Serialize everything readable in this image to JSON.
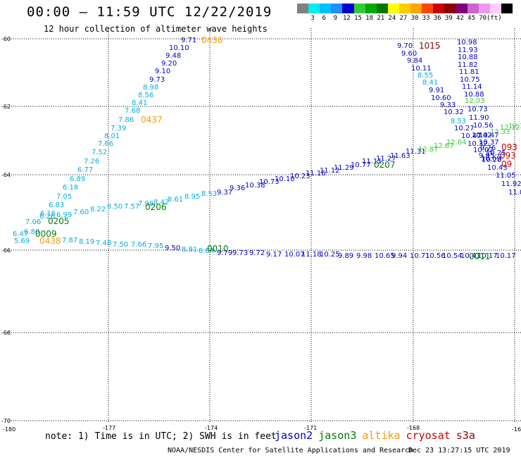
{
  "header": {
    "title": "00:00 – 11:59 UTC 12/22/2019",
    "subtitle": "12 hour collection of altimeter wave heights"
  },
  "scale": {
    "colors": [
      "#808080",
      "#00eeee",
      "#00bfff",
      "#1e90ff",
      "#0000cd",
      "#32cd32",
      "#00aa00",
      "#007700",
      "#ffff00",
      "#ffcc00",
      "#ffa500",
      "#ff4500",
      "#cc0000",
      "#8b0000",
      "#800080",
      "#cc66cc",
      "#ee99ee",
      "#ffccff",
      "#000000"
    ],
    "labels": [
      "3",
      "6",
      "9",
      "12",
      "15",
      "18",
      "21",
      "24",
      "27",
      "30",
      "33",
      "36",
      "39",
      "42",
      "45",
      "70",
      "(ft)"
    ]
  },
  "axes": {
    "lon_labels": [
      "-180",
      "-177",
      "-174",
      "-171",
      "-168",
      "-16"
    ],
    "lat_labels": [
      "-60",
      "-62",
      "-64",
      "-66",
      "-68",
      "-70"
    ]
  },
  "time_labels": [
    {
      "text": "0436",
      "color": "#ff9900"
    },
    {
      "text": "0437",
      "color": "#ff9900"
    },
    {
      "text": "0438",
      "color": "#ff9900"
    },
    {
      "text": "1015",
      "color": "#8b0000"
    },
    {
      "text": "0205",
      "color": "#008000"
    },
    {
      "text": "0206",
      "color": "#008000"
    },
    {
      "text": "0207",
      "color": "#008000"
    },
    {
      "text": "0009",
      "color": "#008000"
    },
    {
      "text": "0010",
      "color": "#008000"
    },
    {
      "text": "0011",
      "color": "#008000"
    },
    {
      "text": "093",
      "color": "#cc0000"
    },
    {
      "text": "093",
      "color": "#cc0000"
    },
    {
      "text": "09",
      "color": "#cc0000"
    }
  ],
  "tracks": {
    "altika_north": [
      "9.71",
      "10.10",
      "9.48",
      "9.20",
      "9.10",
      "9.73",
      "8.98",
      "8.56",
      "8.41",
      "7.68",
      "7.86",
      "7.39",
      "8.01",
      "7.66",
      "7.52",
      "7.26",
      "6.77",
      "6.89",
      "6.18",
      "7.05",
      "6.83",
      "6.16",
      "7.06",
      "6.47",
      "6.80",
      "5.69"
    ],
    "track_1015_left": [
      "9.70",
      "9.60",
      "9.84",
      "10.11",
      "8.55",
      "8.41",
      "9.91",
      "10.60",
      "9.33",
      "10.32",
      "8.53",
      "10.27",
      "10.47",
      "10.42",
      "10.32",
      "10.02",
      "9.95",
      "10.20",
      "10.43",
      "11.05",
      "11.92",
      "11.0"
    ],
    "track_1015_right": [
      "10.98",
      "11.93",
      "10.88",
      "11.82",
      "11.81",
      "10.75",
      "11.14",
      "10.88",
      "10.73",
      "11.90",
      "10.56",
      "10.47",
      "10.37",
      "9.76",
      "10.25",
      "10.69"
    ],
    "mid_track": [
      "6.26",
      "6.99",
      "7.60",
      "8.22",
      "8.50",
      "7.57",
      "7.98",
      "8.42",
      "8.61",
      "8.95",
      "8.53",
      "9.37",
      "9.36",
      "10.38",
      "10.73",
      "10.10",
      "10.23",
      "11.16",
      "11.12",
      "11.29",
      "10.77",
      "11.11",
      "11.27",
      "11.63",
      "11.31"
    ],
    "green_track": [
      "12.87",
      "12.67",
      "12.64",
      "12.03",
      "13.33",
      "12.12",
      "12.14"
    ],
    "south_track": [
      "7.87",
      "8.19",
      "7.48",
      "7.50",
      "7.66",
      "7.95",
      "9.50",
      "8.81",
      "8.84",
      "9.79",
      "9.73",
      "9.72",
      "9.17",
      "10.07",
      "11.18",
      "10.25",
      "9.89",
      "9.98",
      "10.65",
      "9.94",
      "10.71",
      "10.56",
      "10.54",
      "10.41",
      "10.17",
      "10.17"
    ]
  },
  "footer": {
    "note": "note: 1) Time is in UTC; 2) SWH is in feet",
    "legend": [
      {
        "label": "jason2",
        "color": "#0000cd"
      },
      {
        "label": "jason3",
        "color": "#008000"
      },
      {
        "label": "altika",
        "color": "#ff9900"
      },
      {
        "label": "cryosat",
        "color": "#cc0000"
      },
      {
        "label": "s3a",
        "color": "#8b0000"
      }
    ],
    "credit": "NOAA/NESDIS Center for Satellite Applications and Research",
    "stamp": "Dec 23 13:27:15 UTC 2019"
  }
}
